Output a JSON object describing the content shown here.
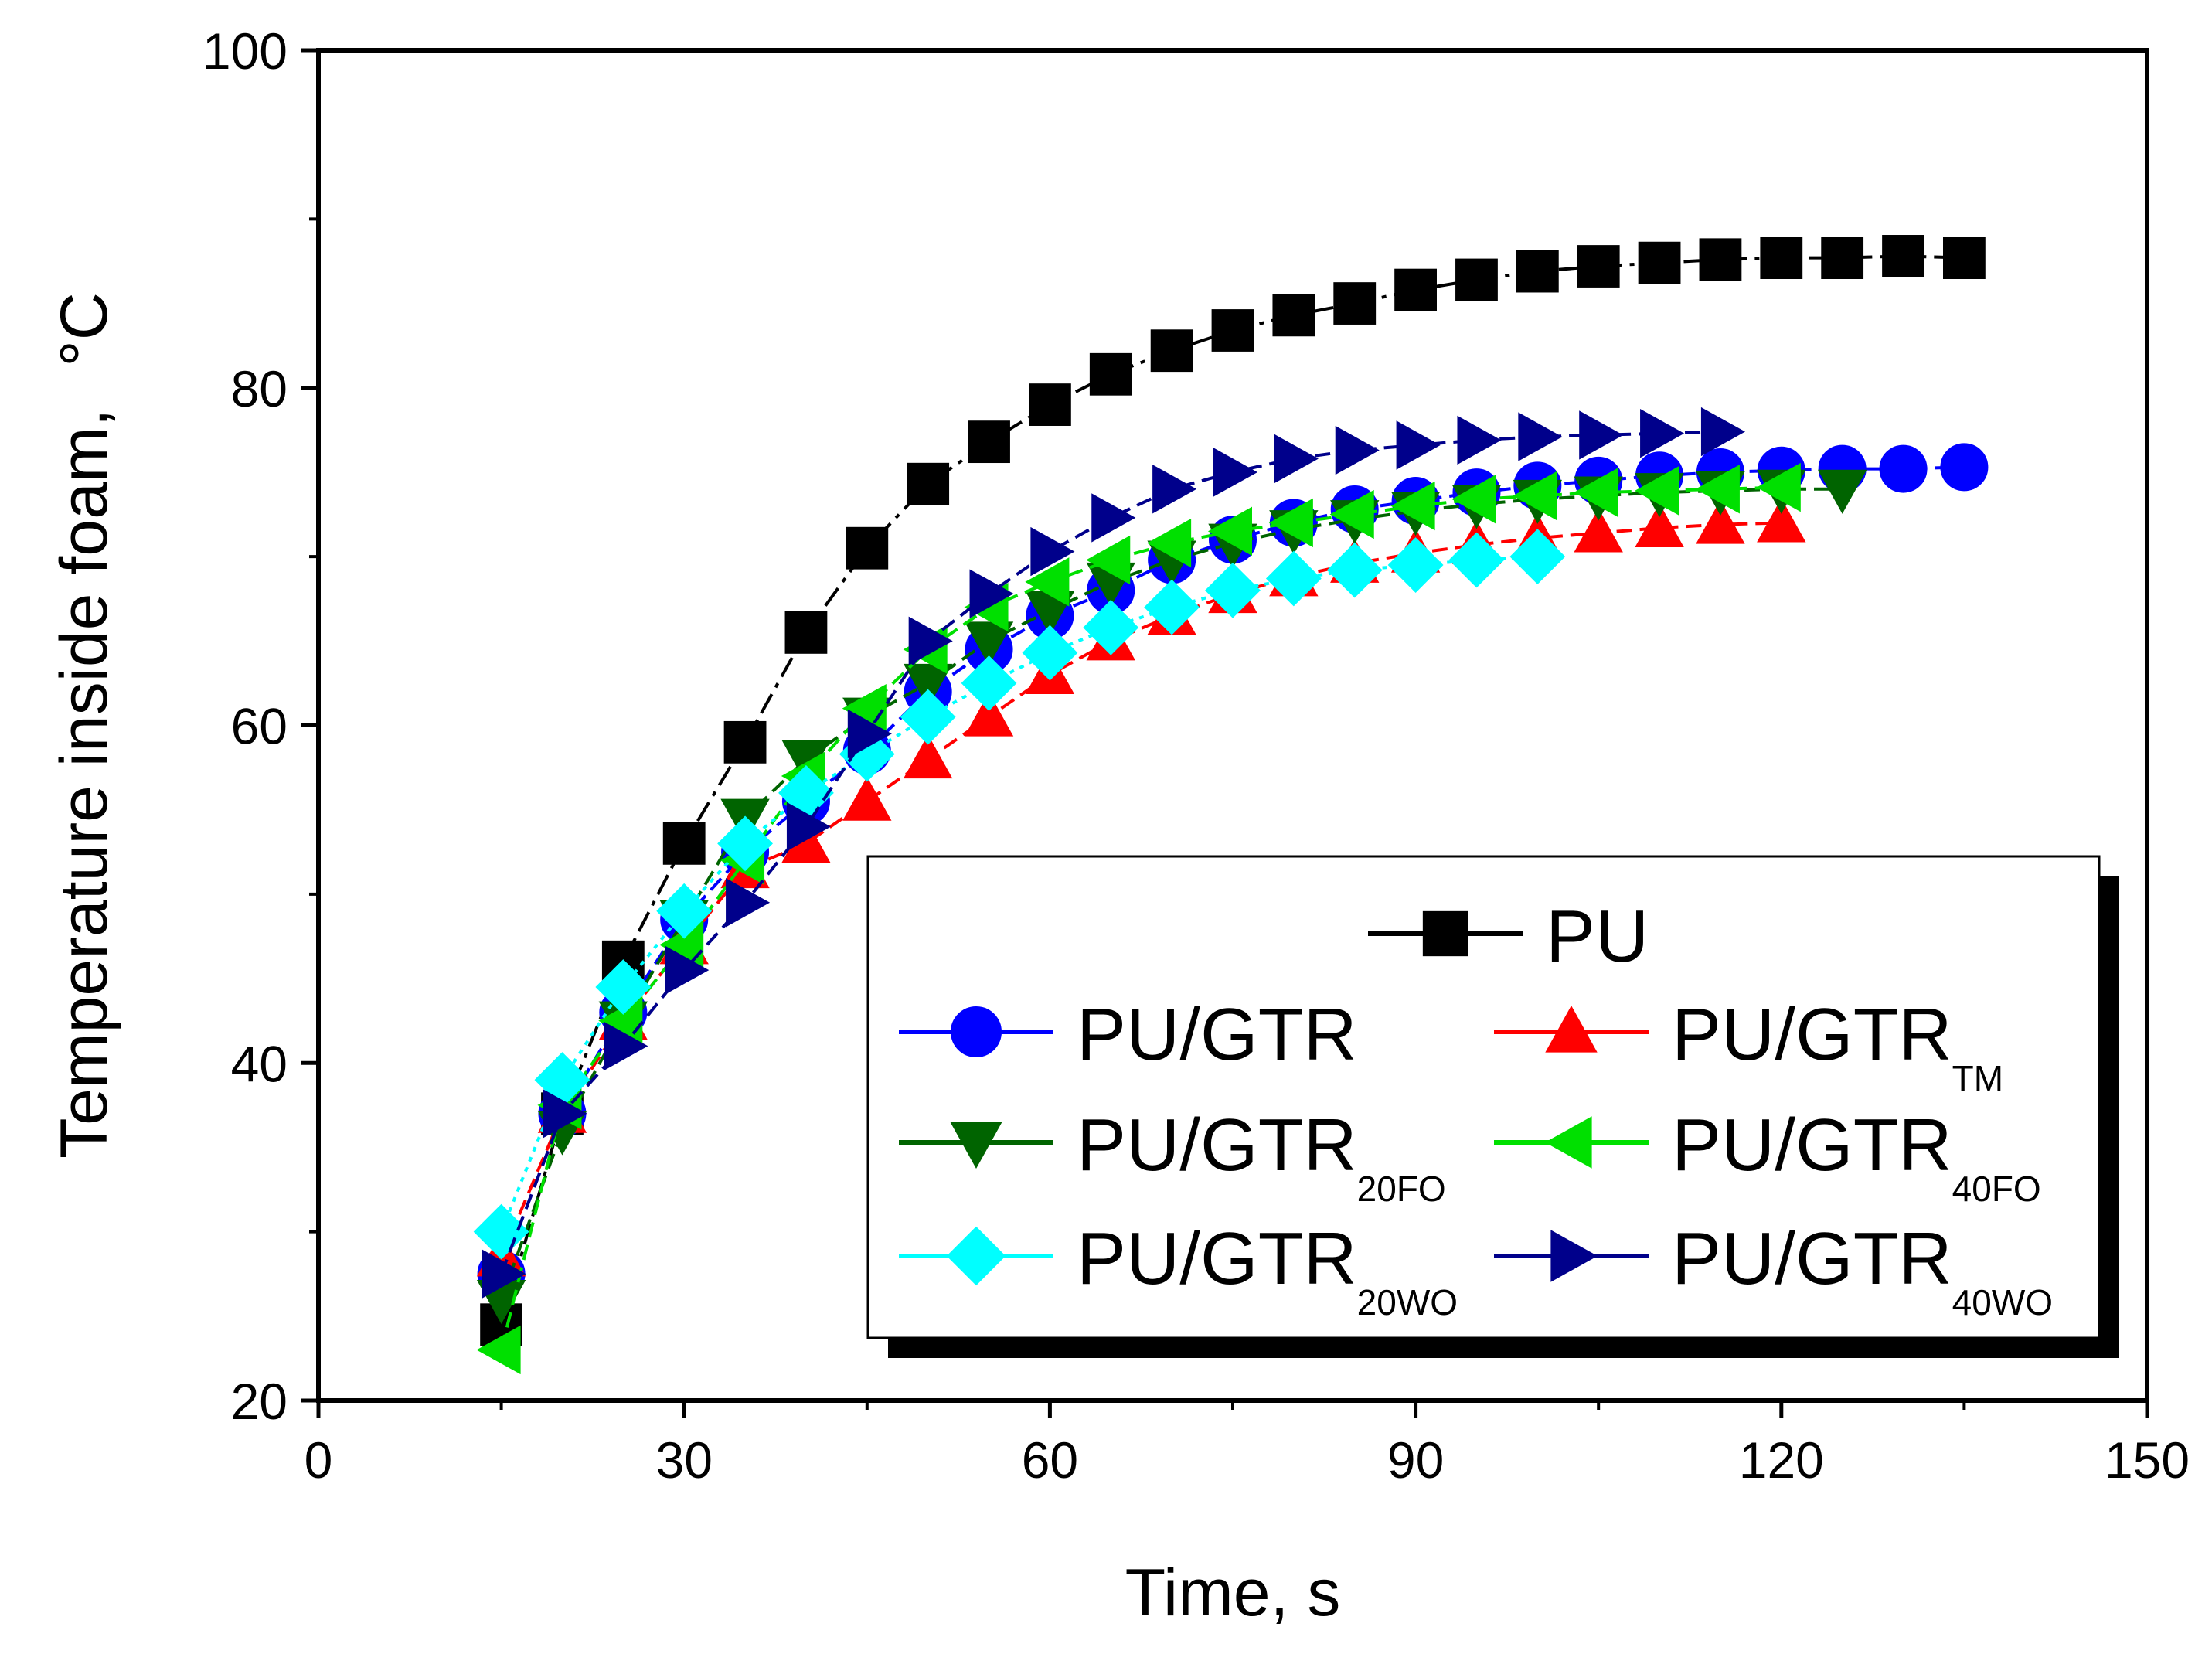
{
  "chart_data": {
    "type": "line",
    "title": "",
    "xlabel": "Time, s",
    "ylabel": "Temperature inside foam,",
    "ylabel_unit": "°C",
    "xlim": [
      0,
      150
    ],
    "ylim": [
      20,
      100
    ],
    "xticks": [
      0,
      30,
      60,
      90,
      120,
      150
    ],
    "yticks": [
      20,
      40,
      60,
      80,
      100
    ],
    "grid": false,
    "legend_position": "lower-right",
    "series": [
      {
        "name": "PU",
        "sub": "",
        "color": "#000000",
        "marker": "square",
        "dash": "dash-dot",
        "x": [
          15,
          20,
          25,
          30,
          35,
          40,
          45,
          50,
          55,
          60,
          65,
          70,
          75,
          80,
          85,
          90,
          95,
          100,
          105,
          110,
          115,
          120,
          125,
          130,
          135
        ],
        "y": [
          24.5,
          37,
          46,
          53,
          59,
          65.5,
          70.5,
          74.3,
          76.8,
          79,
          80.8,
          82.2,
          83.4,
          84.3,
          85,
          85.8,
          86.4,
          86.9,
          87.2,
          87.4,
          87.6,
          87.7,
          87.7,
          87.8,
          87.7
        ]
      },
      {
        "name": "PU/GTR",
        "sub": "",
        "color": "#0000ff",
        "marker": "circle",
        "dash": "dash",
        "x": [
          15,
          20,
          25,
          30,
          35,
          40,
          45,
          50,
          55,
          60,
          65,
          70,
          75,
          80,
          85,
          90,
          95,
          100,
          105,
          110,
          115,
          120,
          125,
          130,
          135
        ],
        "y": [
          27.5,
          37,
          43,
          48.5,
          52.5,
          55.5,
          58.5,
          62,
          64.5,
          66.5,
          68,
          69.8,
          71,
          72,
          72.8,
          73.3,
          73.8,
          74.2,
          74.5,
          74.8,
          75,
          75.1,
          75.2,
          75.2,
          75.3
        ]
      },
      {
        "name": "PU/GTR",
        "sub": "TM",
        "color": "#ff0000",
        "marker": "triangle-up",
        "dash": "dash",
        "x": [
          15,
          20,
          25,
          30,
          35,
          40,
          45,
          50,
          55,
          60,
          65,
          70,
          75,
          80,
          85,
          90,
          95,
          100,
          105,
          110,
          115,
          120
        ],
        "y": [
          28.5,
          37,
          42.5,
          47,
          51.5,
          53,
          55.5,
          58,
          60.5,
          63,
          65,
          66.5,
          67.8,
          68.8,
          69.6,
          70.2,
          70.7,
          71.1,
          71.4,
          71.7,
          71.9,
          72
        ]
      },
      {
        "name": "PU/GTR",
        "sub": "20FO",
        "color": "#006400",
        "marker": "triangle-down",
        "dash": "dash",
        "x": [
          15,
          20,
          25,
          30,
          35,
          40,
          45,
          50,
          55,
          60,
          65,
          70,
          75,
          80,
          85,
          90,
          95,
          100,
          105,
          110,
          115,
          120,
          125
        ],
        "y": [
          26,
          36,
          42.5,
          48.5,
          54.5,
          58,
          60.5,
          62.5,
          65,
          66.8,
          68.5,
          69.8,
          70.8,
          71.6,
          72.2,
          72.7,
          73.1,
          73.4,
          73.6,
          73.8,
          73.9,
          74,
          74
        ]
      },
      {
        "name": "PU/GTR",
        "sub": "40FO",
        "color": "#00e000",
        "marker": "triangle-left",
        "dash": "dash",
        "x": [
          15,
          20,
          25,
          30,
          35,
          40,
          45,
          50,
          55,
          60,
          65,
          70,
          75,
          80,
          85,
          90,
          95,
          100,
          105,
          110,
          115,
          120
        ],
        "y": [
          23,
          37.5,
          42.5,
          47,
          52,
          57,
          61,
          64.5,
          67,
          68.5,
          69.8,
          70.8,
          71.5,
          72,
          72.5,
          73,
          73.4,
          73.6,
          73.8,
          73.9,
          74,
          74.1
        ]
      },
      {
        "name": "PU/GTR",
        "sub": "20WO",
        "color": "#00ffff",
        "marker": "diamond",
        "dash": "dot",
        "x": [
          15,
          20,
          25,
          30,
          35,
          40,
          45,
          50,
          55,
          60,
          65,
          70,
          75,
          80,
          85,
          90,
          95,
          100
        ],
        "y": [
          30,
          39,
          44.5,
          49,
          53,
          56,
          58.3,
          60.5,
          62.5,
          64.3,
          65.8,
          67,
          68,
          68.7,
          69.2,
          69.5,
          69.8,
          70
        ]
      },
      {
        "name": "PU/GTR",
        "sub": "40WO",
        "color": "#00008b",
        "marker": "triangle-right",
        "dash": "dash",
        "x": [
          15,
          20,
          25,
          30,
          35,
          40,
          45,
          50,
          55,
          60,
          65,
          70,
          75,
          80,
          85,
          90,
          95,
          100,
          105,
          110,
          115
        ],
        "y": [
          27.5,
          37,
          41,
          45.5,
          49.5,
          54,
          59.5,
          65,
          67.8,
          70.3,
          72.3,
          74,
          75,
          75.8,
          76.3,
          76.6,
          76.9,
          77.1,
          77.2,
          77.3,
          77.4
        ]
      }
    ]
  }
}
